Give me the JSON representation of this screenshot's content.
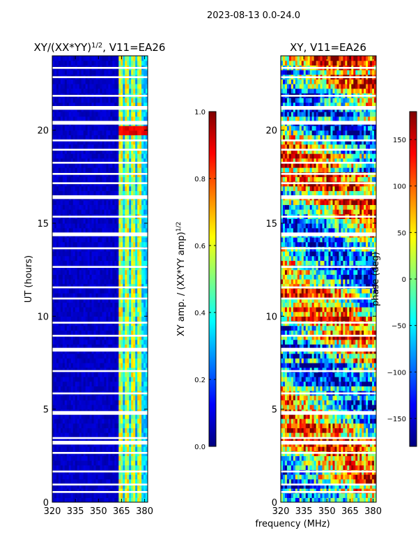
{
  "figure": {
    "suptitle": "2023-08-13 0.0-24.0",
    "shared_xlabel": "frequency (MHz)"
  },
  "chart_data": [
    {
      "type": "heatmap",
      "title_main": "XY/(XX*YY)",
      "title_sup": "1/2",
      "title_rest": ", V11=EA26",
      "xlabel": "",
      "ylabel": "UT (hours)",
      "xlim": [
        320,
        382
      ],
      "ylim": [
        0,
        24
      ],
      "xticks": [
        320,
        335,
        350,
        365,
        380
      ],
      "yticks": [
        0,
        5,
        10,
        15,
        20
      ],
      "colorbar": {
        "label_main": "XY amp. / (XX*YY amp)",
        "label_sup": "1/2",
        "range": [
          0.0,
          1.0
        ],
        "ticks": [
          "0.0",
          "0.2",
          "0.4",
          "0.6",
          "0.8",
          "1.0"
        ],
        "tick_values": [
          0.0,
          0.2,
          0.4,
          0.6,
          0.8,
          1.0
        ]
      },
      "description": "Normalized cross-hand amplitude vs frequency and UT; near 0 below 363 MHz, elevated (0.3-0.6) in 363-382 MHz band with brightest columns near 364, 368, 372 and 377 MHz; horizontal flagged (white) gaps."
    },
    {
      "type": "heatmap",
      "title": "XY, V11=EA26",
      "xlabel": "",
      "ylabel": "",
      "xlim": [
        320,
        382
      ],
      "ylim": [
        0,
        24
      ],
      "xticks": [
        320,
        335,
        350,
        365,
        380
      ],
      "yticks": [
        0,
        5,
        10,
        15,
        20
      ],
      "colorbar": {
        "label": "phase (deg)",
        "range": [
          -180,
          180
        ],
        "ticks": [
          "−150",
          "−100",
          "−50",
          "0",
          "50",
          "100",
          "150"
        ],
        "tick_values": [
          -150,
          -100,
          -50,
          0,
          50,
          100,
          150
        ]
      },
      "description": "Cross-hand XY phase vs frequency and UT; noisy phase varying across full -180..180 range with horizontal flagged gaps."
    }
  ]
}
